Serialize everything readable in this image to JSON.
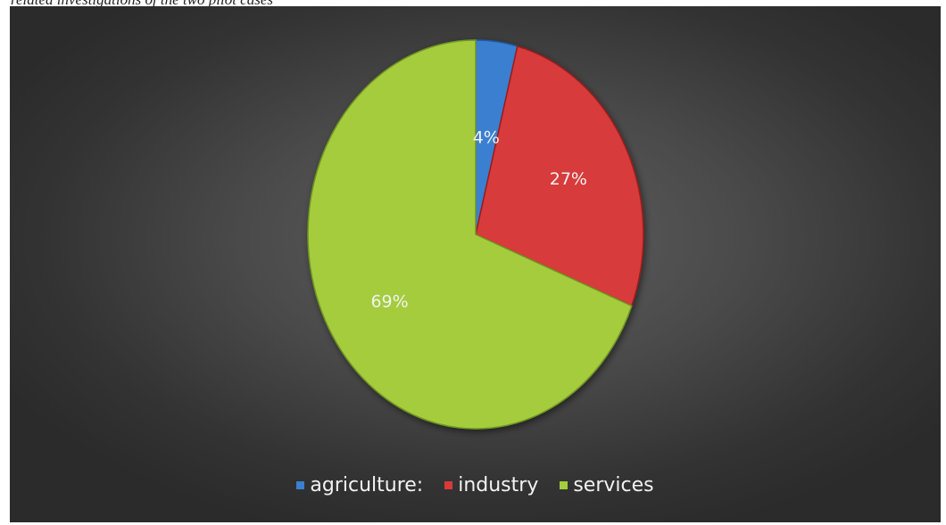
{
  "caption": "related investigations of the two pilot cases",
  "chart_data": {
    "type": "pie",
    "title": "",
    "slices": [
      {
        "label": "agriculture:",
        "value": 4,
        "display": "4%",
        "color": "#3a7fd0",
        "edge": "#1f5aa8"
      },
      {
        "label": "industry",
        "value": 27,
        "display": "27%",
        "color": "#d73a3a",
        "edge": "#9a1c1c"
      },
      {
        "label": "services",
        "value": 69,
        "display": "69%",
        "color": "#a4cc3c",
        "edge": "#6f9620"
      }
    ],
    "start_angle_deg": 0,
    "direction": "clockwise",
    "legend_position": "bottom"
  }
}
